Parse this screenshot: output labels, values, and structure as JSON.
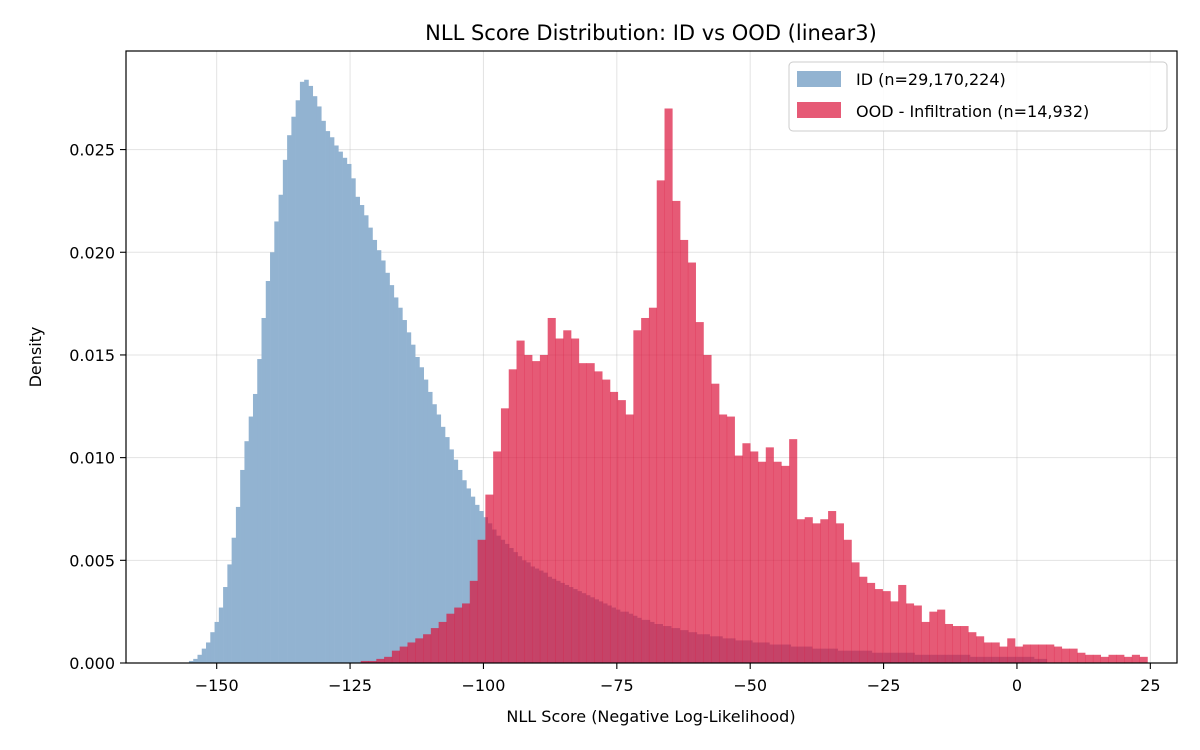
{
  "chart_data": {
    "type": "histogram",
    "title": "NLL Score Distribution: ID vs OOD (linear3)",
    "xlabel": "NLL Score (Negative Log-Likelihood)",
    "ylabel": "Density",
    "xlim": [
      -167,
      30
    ],
    "ylim": [
      0,
      0.0298
    ],
    "xticks": [
      -150,
      -125,
      -100,
      -75,
      -50,
      -25,
      0,
      25
    ],
    "xtick_labels": [
      "−150",
      "−125",
      "−100",
      "−75",
      "−50",
      "−25",
      "0",
      "25"
    ],
    "yticks": [
      0,
      0.005,
      0.01,
      0.015,
      0.02,
      0.025
    ],
    "ytick_labels": [
      "0.000",
      "0.005",
      "0.010",
      "0.015",
      "0.020",
      "0.025"
    ],
    "grid": true,
    "legend_position": "top-right",
    "series": [
      {
        "name": "ID (n=29,170,224)",
        "color": "#92b3d1",
        "bin_width": 0.8,
        "x_start": -156.0,
        "values": [
          0.0,
          0.0001,
          0.0002,
          0.0004,
          0.0007,
          0.001,
          0.0015,
          0.002,
          0.0027,
          0.0037,
          0.0048,
          0.0061,
          0.0076,
          0.0094,
          0.0108,
          0.012,
          0.0131,
          0.0148,
          0.0168,
          0.0186,
          0.02,
          0.0215,
          0.0228,
          0.0245,
          0.0257,
          0.0266,
          0.0274,
          0.0283,
          0.0284,
          0.0281,
          0.0276,
          0.0271,
          0.0264,
          0.0259,
          0.0256,
          0.0252,
          0.0249,
          0.0246,
          0.0243,
          0.0236,
          0.0227,
          0.0223,
          0.0218,
          0.0212,
          0.0206,
          0.0201,
          0.0196,
          0.019,
          0.0184,
          0.0178,
          0.0173,
          0.0167,
          0.0161,
          0.0155,
          0.0149,
          0.0144,
          0.0138,
          0.0132,
          0.0126,
          0.0121,
          0.0115,
          0.011,
          0.0104,
          0.0099,
          0.0094,
          0.0089,
          0.0085,
          0.0081,
          0.0077,
          0.0074,
          0.0071,
          0.0068,
          0.0065,
          0.0062,
          0.006,
          0.0058,
          0.0056,
          0.0054,
          0.0052,
          0.005,
          0.0049,
          0.0047,
          0.0046,
          0.0045,
          0.0044,
          0.0042,
          0.0041,
          0.004,
          0.0039,
          0.0038,
          0.0037,
          0.0036,
          0.0035,
          0.0034,
          0.0033,
          0.0032,
          0.0031,
          0.003,
          0.0029,
          0.0028,
          0.0027,
          0.0026,
          0.0025,
          0.0025,
          0.0024,
          0.0023,
          0.0022,
          0.0021,
          0.0021,
          0.002,
          0.0019,
          0.0019,
          0.0018,
          0.0018,
          0.0017,
          0.0017,
          0.0016,
          0.0016,
          0.0015,
          0.0015,
          0.0014,
          0.0014,
          0.0014,
          0.0013,
          0.0013,
          0.0013,
          0.0012,
          0.0012,
          0.0012,
          0.0011,
          0.0011,
          0.0011,
          0.0011,
          0.001,
          0.001,
          0.001,
          0.001,
          0.0009,
          0.0009,
          0.0009,
          0.0009,
          0.0009,
          0.0008,
          0.0008,
          0.0008,
          0.0008,
          0.0008,
          0.0007,
          0.0007,
          0.0007,
          0.0007,
          0.0007,
          0.0007,
          0.0006,
          0.0006,
          0.0006,
          0.0006,
          0.0006,
          0.0006,
          0.0006,
          0.0006,
          0.0005,
          0.0005,
          0.0005,
          0.0005,
          0.0005,
          0.0005,
          0.0005,
          0.0005,
          0.0005,
          0.0005,
          0.0004,
          0.0004,
          0.0004,
          0.0004,
          0.0004,
          0.0004,
          0.0004,
          0.0004,
          0.0004,
          0.0004,
          0.0004,
          0.0004,
          0.0004,
          0.0003,
          0.0003,
          0.0003,
          0.0003,
          0.0003,
          0.0003,
          0.0003,
          0.0003,
          0.0003,
          0.0003,
          0.0003,
          0.0003,
          0.0003,
          0.0003,
          0.0003,
          0.0002,
          0.0002,
          0.0002
        ]
      },
      {
        "name": "OOD - Infiltration (n=14,932)",
        "color": "#dc143c",
        "opacity": 0.7,
        "bin_width": 1.46,
        "x_start": -123.0,
        "values": [
          0.0001,
          0.0001,
          0.0002,
          0.0003,
          0.0006,
          0.0008,
          0.001,
          0.0012,
          0.0014,
          0.0017,
          0.002,
          0.0024,
          0.0027,
          0.0029,
          0.004,
          0.006,
          0.0082,
          0.0103,
          0.0124,
          0.0143,
          0.0157,
          0.015,
          0.0147,
          0.015,
          0.0168,
          0.0158,
          0.0162,
          0.0158,
          0.0146,
          0.0146,
          0.0142,
          0.0138,
          0.0132,
          0.0128,
          0.0121,
          0.0162,
          0.0168,
          0.0173,
          0.0235,
          0.027,
          0.0225,
          0.0206,
          0.0195,
          0.0166,
          0.015,
          0.0136,
          0.0121,
          0.012,
          0.0101,
          0.0107,
          0.0103,
          0.0098,
          0.0105,
          0.0098,
          0.0096,
          0.0109,
          0.007,
          0.0071,
          0.0068,
          0.007,
          0.0074,
          0.0068,
          0.006,
          0.0049,
          0.0042,
          0.0039,
          0.0036,
          0.0035,
          0.003,
          0.0038,
          0.0029,
          0.0028,
          0.002,
          0.0025,
          0.0026,
          0.0019,
          0.0018,
          0.0018,
          0.0015,
          0.0013,
          0.001,
          0.001,
          0.0008,
          0.0012,
          0.0008,
          0.0009,
          0.0009,
          0.0009,
          0.0009,
          0.0008,
          0.0007,
          0.0007,
          0.0005,
          0.0004,
          0.0004,
          0.0003,
          0.0004,
          0.0004,
          0.0003,
          0.0004,
          0.0003
        ]
      }
    ]
  }
}
